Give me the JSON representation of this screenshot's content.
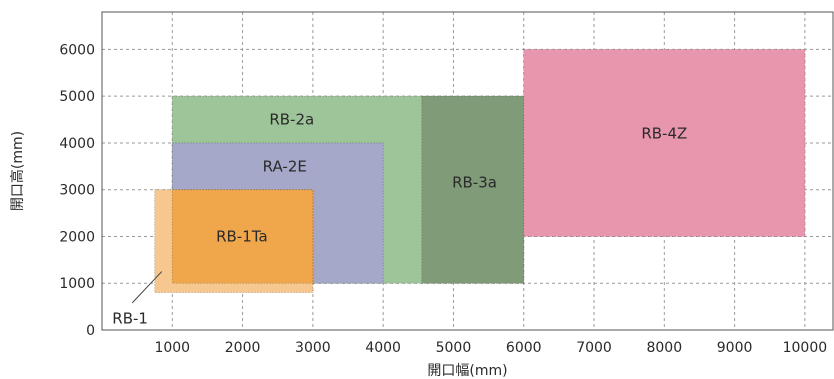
{
  "chart_data": {
    "type": "area",
    "xlabel": "開口幅(mm)",
    "ylabel": "開口高(mm)",
    "xlim": [
      0,
      10400
    ],
    "ylim": [
      0,
      6800
    ],
    "x_ticks": [
      1000,
      2000,
      3000,
      4000,
      5000,
      6000,
      7000,
      8000,
      9000,
      10000
    ],
    "y_ticks": [
      0,
      1000,
      2000,
      3000,
      4000,
      5000,
      6000
    ],
    "grid": true,
    "regions": [
      {
        "name": "RB-2a",
        "x": [
          1000,
          6000
        ],
        "y": [
          1000,
          5000
        ],
        "color": "#9ec49a"
      },
      {
        "name": "RA-2E",
        "x": [
          1000,
          4000
        ],
        "y": [
          1000,
          4000
        ],
        "color": "#a5a8c9"
      },
      {
        "name": "RB-3a",
        "x": [
          4550,
          6000
        ],
        "y": [
          1000,
          5000
        ],
        "color": "#7f9b78"
      },
      {
        "name": "RB-1",
        "x": [
          750,
          3000
        ],
        "y": [
          800,
          3000
        ],
        "color": "#f6c88f"
      },
      {
        "name": "RB-1Ta",
        "x": [
          1000,
          3000
        ],
        "y": [
          1000,
          3000
        ],
        "color": "#f0a64a"
      },
      {
        "name": "RB-4Z",
        "x": [
          6000,
          10000
        ],
        "y": [
          2000,
          6000
        ],
        "color": "#e896ae"
      }
    ]
  }
}
